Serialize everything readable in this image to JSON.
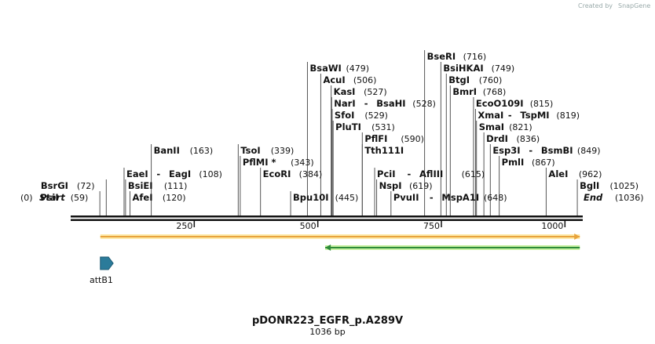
{
  "credit": {
    "text": "Created by",
    "brand": "SnapGene"
  },
  "plasmid": {
    "name": "pDONR223_EGFR_p.A289V",
    "length_label": "1036 bp",
    "length": 1036
  },
  "ends": {
    "start_label": "Start",
    "start_pos": "(0)",
    "end_label": "End",
    "end_pos": "(1036)"
  },
  "ticks": [
    {
      "value": 250,
      "label": "250"
    },
    {
      "value": 500,
      "label": "500"
    },
    {
      "value": 750,
      "label": "750"
    },
    {
      "value": 1000,
      "label": "1000"
    }
  ],
  "sites": [
    {
      "id": "psii",
      "row": 1,
      "side": "right",
      "pos": 59,
      "parts": [
        {
          "name": "PsiI",
          "pos": 59
        }
      ]
    },
    {
      "id": "bsrgi",
      "row": 2,
      "side": "right",
      "pos": 72,
      "parts": [
        {
          "name": "BsrGI",
          "pos": 72
        }
      ]
    },
    {
      "id": "afei",
      "row": 1,
      "side": "left",
      "pos": 120,
      "parts": [
        {
          "name": "AfeI",
          "pos": 120
        }
      ]
    },
    {
      "id": "bsiei",
      "row": 2,
      "side": "left",
      "pos": 111,
      "parts": [
        {
          "name": "BsiEI",
          "pos": 111
        }
      ]
    },
    {
      "id": "eaei",
      "row": 3,
      "side": "left",
      "pos": 108,
      "parts": [
        {
          "name": "EaeI",
          "pos": null
        },
        {
          "name": "EagI",
          "pos": 108
        }
      ]
    },
    {
      "id": "banii",
      "row": 5,
      "side": "left",
      "pos": 163,
      "parts": [
        {
          "name": "BanII",
          "pos": 163
        }
      ]
    },
    {
      "id": "ecori",
      "row": 3,
      "side": "left",
      "pos": 384,
      "parts": [
        {
          "name": "EcoRI",
          "pos": 384
        }
      ]
    },
    {
      "id": "pflmi",
      "row": 4,
      "side": "left",
      "pos": 343,
      "parts": [
        {
          "name": "PflMI *",
          "pos": 343
        }
      ]
    },
    {
      "id": "tsoi",
      "row": 5,
      "side": "left",
      "pos": 339,
      "parts": [
        {
          "name": "TsoI",
          "pos": 339
        }
      ]
    },
    {
      "id": "bpu10i",
      "row": 1,
      "side": "left",
      "pos": 445,
      "parts": [
        {
          "name": "Bpu10I",
          "pos": 445
        }
      ]
    },
    {
      "id": "bsawi",
      "row": 12,
      "side": "left",
      "pos": 479,
      "parts": [
        {
          "name": "BsaWI",
          "pos": 479
        }
      ]
    },
    {
      "id": "acui",
      "row": 11,
      "side": "left",
      "pos": 506,
      "parts": [
        {
          "name": "AcuI",
          "pos": 506
        }
      ]
    },
    {
      "id": "kasi",
      "row": 10,
      "side": "left",
      "pos": 527,
      "parts": [
        {
          "name": "KasI",
          "pos": 527
        }
      ]
    },
    {
      "id": "nari",
      "row": 9,
      "side": "left",
      "pos": 528,
      "parts": [
        {
          "name": "NarI",
          "pos": null
        },
        {
          "name": "BsaHI",
          "pos": 528
        }
      ]
    },
    {
      "id": "sfoi",
      "row": 8,
      "side": "left",
      "pos": 529,
      "parts": [
        {
          "name": "SfoI",
          "pos": 529
        }
      ]
    },
    {
      "id": "pluti",
      "row": 7,
      "side": "left",
      "pos": 531,
      "parts": [
        {
          "name": "PluTI",
          "pos": 531
        }
      ]
    },
    {
      "id": "pflfi",
      "row": 6,
      "side": "left",
      "pos": 590,
      "parts": [
        {
          "name": "PflFI",
          "pos": 590
        }
      ]
    },
    {
      "id": "tth111i",
      "row": 5,
      "side": "left",
      "pos": 590,
      "parts": [
        {
          "name": "Tth111I",
          "pos": null
        }
      ]
    },
    {
      "id": "pcii",
      "row": 3,
      "side": "left",
      "pos": 615,
      "parts": [
        {
          "name": "PciI",
          "pos": null
        },
        {
          "name": "AflIII",
          "pos": 615
        }
      ]
    },
    {
      "id": "nspi",
      "row": 2,
      "side": "left",
      "pos": 619,
      "parts": [
        {
          "name": "NspI",
          "pos": 619
        }
      ]
    },
    {
      "id": "pvuii",
      "row": 1,
      "side": "left",
      "pos": 648,
      "parts": [
        {
          "name": "PvuII",
          "pos": null
        },
        {
          "name": "MspA1I",
          "pos": 648
        }
      ]
    },
    {
      "id": "bseri",
      "row": 13,
      "side": "left",
      "pos": 716,
      "parts": [
        {
          "name": "BseRI",
          "pos": 716
        }
      ]
    },
    {
      "id": "bsihkai",
      "row": 12,
      "side": "left",
      "pos": 749,
      "parts": [
        {
          "name": "BsiHKAI",
          "pos": 749
        }
      ]
    },
    {
      "id": "btgi",
      "row": 11,
      "side": "left",
      "pos": 760,
      "parts": [
        {
          "name": "BtgI",
          "pos": 760
        }
      ]
    },
    {
      "id": "bmri",
      "row": 10,
      "side": "left",
      "pos": 768,
      "parts": [
        {
          "name": "BmrI",
          "pos": 768
        }
      ]
    },
    {
      "id": "ecoo109i",
      "row": 9,
      "side": "left",
      "pos": 815,
      "parts": [
        {
          "name": "EcoO109I",
          "pos": 815
        }
      ]
    },
    {
      "id": "xmai",
      "row": 8,
      "side": "left",
      "pos": 819,
      "parts": [
        {
          "name": "XmaI",
          "pos": null
        },
        {
          "name": "TspMI",
          "pos": 819
        }
      ]
    },
    {
      "id": "smai",
      "row": 7,
      "side": "left",
      "pos": 821,
      "parts": [
        {
          "name": "SmaI",
          "pos": 821
        }
      ]
    },
    {
      "id": "drdi",
      "row": 6,
      "side": "left",
      "pos": 836,
      "parts": [
        {
          "name": "DrdI",
          "pos": 836
        }
      ]
    },
    {
      "id": "esp3i",
      "row": 5,
      "side": "left",
      "pos": 849,
      "parts": [
        {
          "name": "Esp3I",
          "pos": null
        },
        {
          "name": "BsmBI",
          "pos": 849
        }
      ]
    },
    {
      "id": "pmli",
      "row": 4,
      "side": "left",
      "pos": 867,
      "parts": [
        {
          "name": "PmlI",
          "pos": 867
        }
      ]
    },
    {
      "id": "alei",
      "row": 3,
      "side": "left",
      "pos": 962,
      "parts": [
        {
          "name": "AleI",
          "pos": 962
        }
      ]
    },
    {
      "id": "bgli",
      "row": 2,
      "side": "left",
      "pos": 1025,
      "parts": [
        {
          "name": "BglI",
          "pos": 1025
        }
      ]
    }
  ],
  "features": [
    {
      "id": "orange",
      "start": 60,
      "end": 1030,
      "direction": "forward",
      "color": "#e8a33c",
      "fill": "#fde9a8"
    },
    {
      "id": "green",
      "start": 515,
      "end": 1030,
      "direction": "reverse",
      "color": "#2e8b3a",
      "fill": "#c6f0a0"
    },
    {
      "id": "attb1",
      "start": 60,
      "end": 86,
      "direction": "forward",
      "color": "#2b7b9a",
      "label": "attB1"
    }
  ],
  "colors": {
    "backbone": "#111111",
    "site_line": "#555555"
  }
}
